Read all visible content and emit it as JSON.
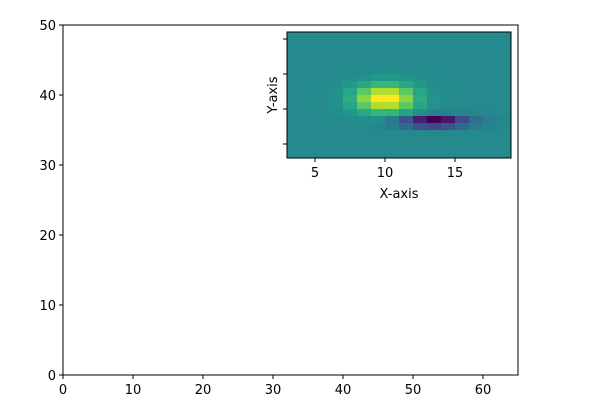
{
  "chart_data": [
    {
      "type": "axes",
      "xlim": [
        0,
        65
      ],
      "ylim": [
        0,
        50
      ],
      "xticks": [
        0,
        10,
        20,
        30,
        40,
        50,
        60
      ],
      "yticks": [
        0,
        10,
        20,
        30,
        40,
        50
      ]
    },
    {
      "type": "heatmap",
      "xlabel": "X-axis",
      "ylabel": "Y-axis",
      "xlim": [
        3,
        19
      ],
      "ylim": [
        0,
        18
      ],
      "xticks": [
        5,
        10,
        15
      ],
      "yticks": [
        2,
        7,
        12,
        17
      ],
      "colormap": "viridis",
      "zlim": [
        -0.86,
        0.95
      ],
      "z": [
        [
          0,
          0,
          0,
          0,
          0,
          0,
          0,
          0,
          0,
          0,
          0,
          0,
          0,
          0,
          0,
          0
        ],
        [
          0,
          0,
          0,
          0,
          0,
          0,
          0,
          0,
          0,
          0,
          0,
          0,
          0,
          0,
          0,
          0
        ],
        [
          0,
          0,
          0,
          0,
          0,
          0,
          0,
          0,
          0,
          0,
          0,
          0,
          0,
          0,
          0,
          0
        ],
        [
          0,
          0,
          0,
          0,
          0,
          0,
          0,
          0,
          0,
          0,
          0,
          0,
          0,
          0,
          0,
          0
        ],
        [
          0,
          0,
          0,
          0,
          0,
          0,
          0,
          0,
          0,
          0,
          0,
          0,
          0,
          0,
          0,
          0
        ],
        [
          0,
          0,
          0,
          0,
          0,
          0.01,
          0.02,
          0.02,
          0.01,
          0,
          0,
          0,
          0,
          0,
          0,
          0
        ],
        [
          0,
          0,
          0,
          0.01,
          0.03,
          0.06,
          0.1,
          0.1,
          0.06,
          0.03,
          0.01,
          0,
          0,
          0,
          0,
          0
        ],
        [
          0,
          0,
          0.01,
          0.03,
          0.1,
          0.23,
          0.35,
          0.35,
          0.23,
          0.1,
          0.03,
          0.01,
          0,
          0,
          0,
          0
        ],
        [
          0,
          0,
          0.01,
          0.06,
          0.21,
          0.49,
          0.74,
          0.74,
          0.49,
          0.21,
          0.06,
          0.01,
          0,
          0,
          0,
          0
        ],
        [
          0,
          0,
          0.02,
          0.08,
          0.27,
          0.63,
          0.95,
          0.95,
          0.63,
          0.27,
          0.08,
          0.02,
          0,
          0,
          0,
          0
        ],
        [
          0,
          0,
          0.01,
          0.06,
          0.21,
          0.49,
          0.74,
          0.74,
          0.49,
          0.21,
          0.06,
          0.01,
          0,
          0,
          0,
          0
        ],
        [
          0,
          0,
          0.01,
          0.03,
          0.1,
          0.23,
          0.35,
          0.33,
          0.19,
          0.03,
          -0.05,
          -0.06,
          -0.04,
          -0.02,
          -0.01,
          0
        ],
        [
          0,
          0,
          0,
          0.01,
          0.03,
          0.04,
          0.03,
          -0.11,
          -0.4,
          -0.71,
          -0.86,
          -0.74,
          -0.46,
          -0.21,
          -0.07,
          -0.02
        ],
        [
          0,
          0,
          0,
          0,
          0,
          0,
          -0.02,
          -0.09,
          -0.24,
          -0.4,
          -0.47,
          -0.4,
          -0.25,
          -0.11,
          -0.04,
          -0.01
        ],
        [
          0,
          0,
          0,
          0,
          0,
          0,
          0,
          0,
          0,
          -0.01,
          -0.01,
          -0.01,
          0,
          0,
          0,
          0
        ],
        [
          0,
          0,
          0,
          0,
          0,
          0,
          0,
          0,
          0,
          0,
          0,
          0,
          0,
          0,
          0,
          0
        ],
        [
          0,
          0,
          0,
          0,
          0,
          0,
          0,
          0,
          0,
          0,
          0,
          0,
          0,
          0,
          0,
          0
        ],
        [
          0,
          0,
          0,
          0,
          0,
          0,
          0,
          0,
          0,
          0,
          0,
          0,
          0,
          0,
          0,
          0
        ]
      ]
    }
  ]
}
